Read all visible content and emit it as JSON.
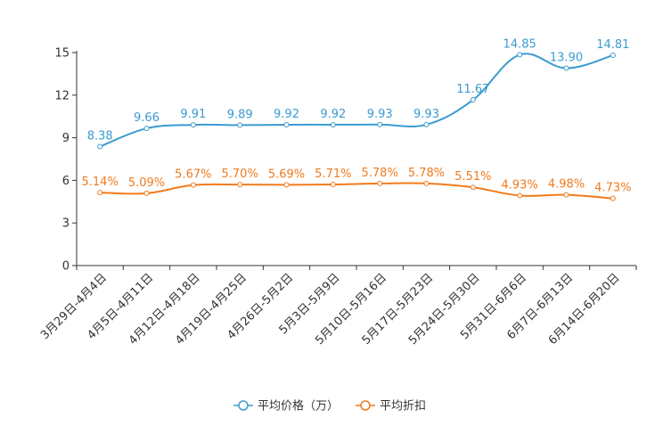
{
  "chart_data": {
    "type": "line",
    "title": "",
    "xlabel": "",
    "ylabel": "",
    "categories": [
      "3月29日-4月4日",
      "4月5日-4月11日",
      "4月12日-4月18日",
      "4月19日-4月25日",
      "4月26日-5月2日",
      "5月3日-5月9日",
      "5月10日-5月16日",
      "5月17日-5月23日",
      "5月24日-5月30日",
      "5月31日-6月6日",
      "6月7日-6月13日",
      "6月14日-6月20日"
    ],
    "ylim": [
      0,
      15
    ],
    "yticks": [
      0,
      3,
      6,
      9,
      12,
      15
    ],
    "grid": false,
    "legend_position": "bottom-center",
    "series": [
      {
        "name": "平均价格（万）",
        "color": "#3a9bd1",
        "values": [
          8.38,
          9.66,
          9.91,
          9.89,
          9.92,
          9.92,
          9.93,
          9.93,
          11.67,
          14.85,
          13.9,
          14.81
        ],
        "labels": [
          "8.38",
          "9.66",
          "9.91",
          "9.89",
          "9.92",
          "9.92",
          "9.93",
          "9.93",
          "11.67",
          "14.85",
          "13.90",
          "14.81"
        ]
      },
      {
        "name": "平均折扣",
        "color": "#f07b1c",
        "values": [
          5.14,
          5.09,
          5.67,
          5.7,
          5.69,
          5.71,
          5.78,
          5.78,
          5.51,
          4.93,
          4.98,
          4.73
        ],
        "labels": [
          "5.14%",
          "5.09%",
          "5.67%",
          "5.70%",
          "5.69%",
          "5.71%",
          "5.78%",
          "5.78%",
          "5.51%",
          "4.93%",
          "4.98%",
          "4.73%"
        ]
      }
    ]
  }
}
